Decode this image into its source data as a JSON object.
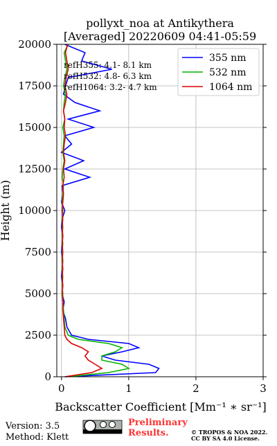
{
  "chart_data": {
    "type": "line",
    "title": [
      "pollyxt_noa at Antikythera",
      "[Averaged] 20220609 04:41-05:59"
    ],
    "x_label": "Backscatter Coefficient [Mm⁻¹ ∗ sr⁻¹]",
    "y_label": "Height (m)",
    "y": [
      0,
      250,
      500,
      750,
      1000,
      1250,
      1500,
      1750,
      2000,
      2250,
      2500,
      3000,
      3500,
      4000,
      4500,
      5000,
      5500,
      6000,
      6500,
      7000,
      7500,
      8000,
      8500,
      9000,
      9500,
      10000,
      10500,
      11000,
      11500,
      12000,
      12500,
      13000,
      13500,
      14000,
      14500,
      15000,
      15500,
      16000,
      16500,
      17000,
      17500,
      18000,
      18500,
      19000,
      19500,
      20000
    ],
    "series": [
      {
        "name": "355 nm",
        "color": "#0000ff",
        "values": [
          0.05,
          1.4,
          1.45,
          1.3,
          0.8,
          0.6,
          0.9,
          1.15,
          1.0,
          0.4,
          0.15,
          0.08,
          0.06,
          0.02,
          0.04,
          0.01,
          0.02,
          0.0,
          0.01,
          0.02,
          0.0,
          0.01,
          0.02,
          0.0,
          0.01,
          0.05,
          0.0,
          0.02,
          0.01,
          0.42,
          0.05,
          0.33,
          0.0,
          0.15,
          0.05,
          0.48,
          0.1,
          0.57,
          0.2,
          0.03,
          0.06,
          0.1,
          0.75,
          0.3,
          0.35,
          0.05
        ]
      },
      {
        "name": "532 nm",
        "color": "#00b400",
        "values": [
          0.1,
          0.7,
          1.0,
          0.9,
          0.6,
          0.6,
          0.8,
          0.9,
          0.7,
          0.25,
          0.1,
          0.05,
          0.04,
          0.03,
          0.02,
          0.02,
          0.01,
          0.02,
          0.01,
          0.02,
          0.01,
          0.02,
          0.01,
          0.02,
          0.01,
          0.02,
          0.01,
          0.02,
          0.03,
          0.01,
          0.02,
          0.04,
          0.02,
          0.03,
          0.04,
          0.02,
          0.05,
          0.03,
          0.04,
          0.06,
          0.03,
          0.05,
          0.08,
          0.06,
          0.04,
          0.1
        ]
      },
      {
        "name": "1064 nm",
        "color": "#e00000",
        "values": [
          0.05,
          0.45,
          0.6,
          0.5,
          0.4,
          0.35,
          0.4,
          0.3,
          0.15,
          0.08,
          0.05,
          0.04,
          0.03,
          0.02,
          0.02,
          0.01,
          0.02,
          0.01,
          0.02,
          0.01,
          0.02,
          0.01,
          0.02,
          0.01,
          0.02,
          0.01,
          0.02,
          0.03,
          0.02,
          0.04,
          0.03,
          0.05,
          0.03,
          0.04,
          0.06,
          0.04,
          0.05,
          0.03,
          0.06,
          0.08,
          0.05,
          0.07,
          0.1,
          0.08,
          0.06,
          0.09
        ]
      }
    ],
    "xlim": [
      -0.07,
      3
    ],
    "xticks": [
      0,
      1,
      2,
      3
    ],
    "ylim": [
      0,
      20000
    ],
    "yticks": [
      0,
      2500,
      5000,
      7500,
      10000,
      12500,
      15000,
      17500,
      20000
    ],
    "grid": true,
    "legend": "upper right",
    "annotations": [
      "refH355:  4.1- 8.1 km",
      "refH532:  4.8- 6.3 km",
      "refH1064:  3.2- 4.7 km"
    ]
  },
  "footer": {
    "version": "Version: 3.5",
    "method": "Method: Klett",
    "preliminary": [
      "Preliminary",
      "Results."
    ],
    "license": [
      "© TROPOS & NOA 2022.",
      "CC BY SA 4.0 License."
    ]
  }
}
